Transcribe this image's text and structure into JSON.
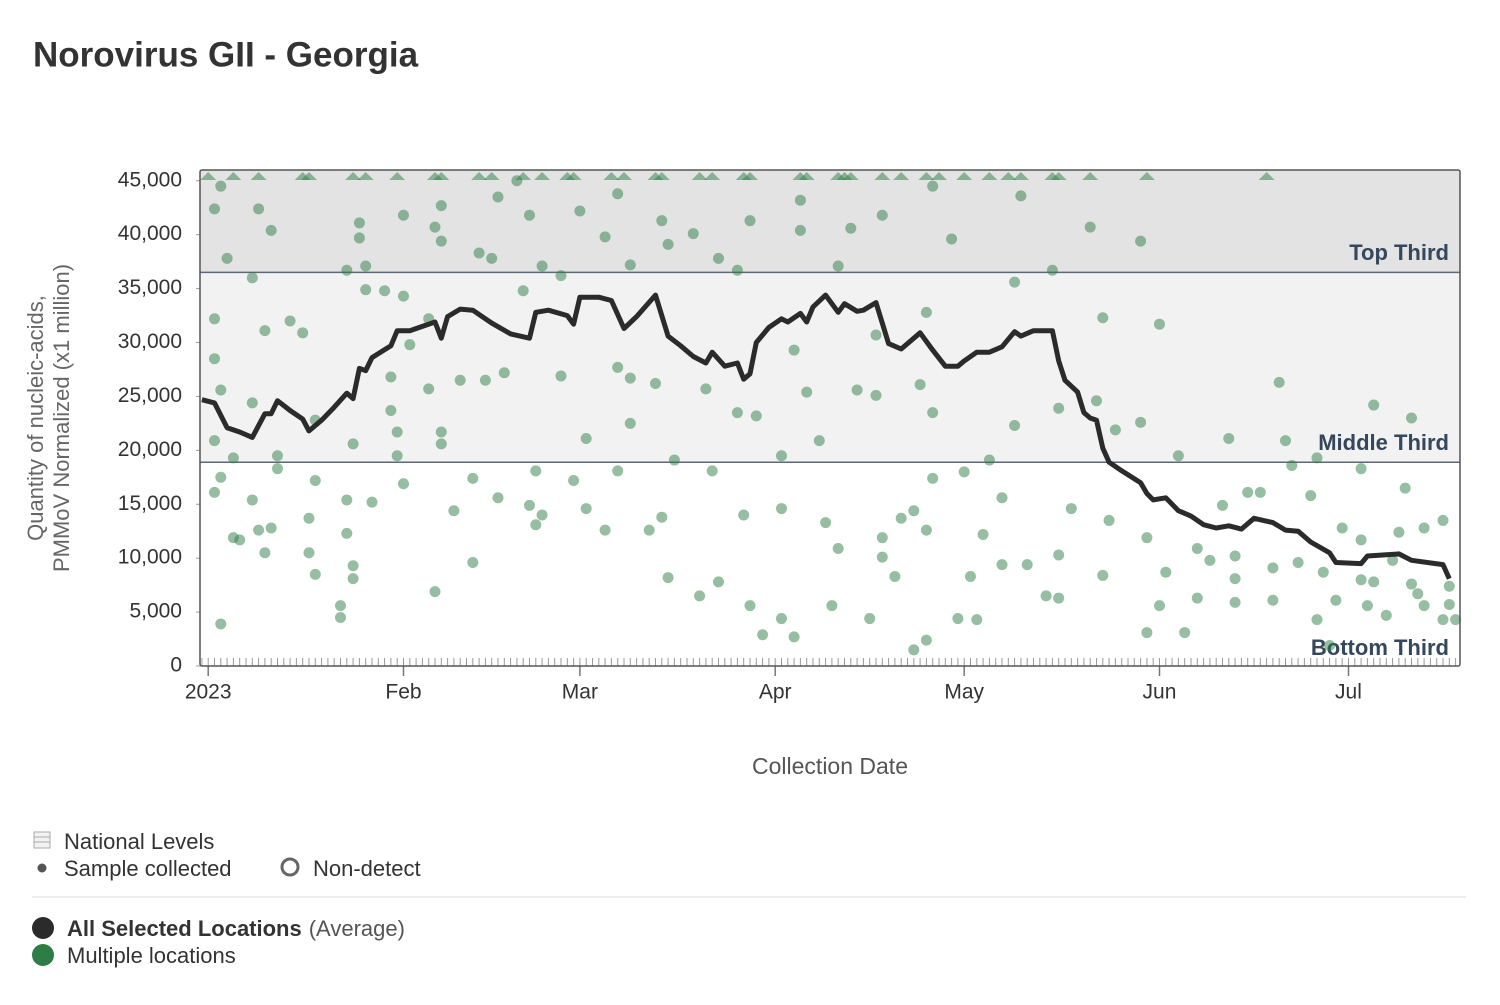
{
  "chart_data": {
    "type": "line-scatter",
    "title": "Norovirus GII - Georgia",
    "ylabel": [
      "Quantity of nucleic-acids,",
      "PMMoV Normalized (x1 million)"
    ],
    "xlabel": "Collection Date",
    "xlim": [
      -0.3,
      199.7
    ],
    "xticks": [
      {
        "value": 1,
        "label": "2023"
      },
      {
        "value": 32,
        "label": "Feb"
      },
      {
        "value": 60,
        "label": "Mar"
      },
      {
        "value": 91,
        "label": "Apr"
      },
      {
        "value": 121,
        "label": "May"
      },
      {
        "value": 152,
        "label": "Jun"
      },
      {
        "value": 182,
        "label": "Jul"
      }
    ],
    "ylim": [
      0,
      46000
    ],
    "yticks": [
      0,
      {
        "value": 5000,
        "label": "5,000"
      },
      {
        "value": 10000,
        "label": "10,000"
      },
      {
        "value": 15000,
        "label": "15,000"
      },
      {
        "value": 20000,
        "label": "20,000"
      },
      {
        "value": 25000,
        "label": "25,000"
      },
      {
        "value": 30000,
        "label": "30,000"
      },
      {
        "value": 35000,
        "label": "35,000"
      },
      {
        "value": 40000,
        "label": "40,000"
      },
      {
        "value": 45000,
        "label": "45,000"
      }
    ],
    "band_thresholds": [
      18900,
      36500
    ],
    "band_labels": [
      "Bottom Third",
      "Middle Third",
      "Top Third"
    ],
    "band_colors": [
      "#ffffff",
      "#f2f2f2",
      "#e3e3e3"
    ],
    "legend_levels": [
      "National Levels",
      "Sample collected",
      "Non-detect"
    ],
    "series": [
      {
        "name": "All Selected Locations",
        "note": "(Average)",
        "color": "#2b2b2b",
        "x": [
          0,
          2,
          4,
          6,
          8,
          10,
          11,
          12,
          14,
          16,
          17,
          19,
          21,
          23,
          24,
          25,
          26,
          27,
          30,
          31,
          33,
          37,
          38,
          39,
          41,
          43,
          46,
          49,
          52,
          53,
          55,
          58,
          59,
          60,
          63,
          65,
          67,
          69,
          72,
          74,
          76,
          78,
          80,
          81,
          83,
          85,
          86,
          87,
          88,
          90,
          92,
          93,
          95,
          96,
          97,
          99,
          101,
          102,
          104,
          105,
          107,
          109,
          111,
          114,
          116,
          118,
          120,
          121,
          123,
          125,
          127,
          129,
          130,
          132,
          135,
          136,
          137,
          139,
          140,
          141,
          142,
          143,
          144,
          146,
          149,
          150,
          151,
          153,
          155,
          157,
          159,
          161,
          163,
          165,
          167,
          170,
          172,
          174,
          176,
          179,
          180,
          184,
          185,
          190,
          192,
          197,
          198
        ],
        "values": [
          24700,
          24400,
          22100,
          21700,
          21200,
          23400,
          23400,
          24600,
          23700,
          22900,
          21800,
          22800,
          24000,
          25300,
          24800,
          27600,
          27400,
          28600,
          29700,
          31100,
          31100,
          31900,
          30400,
          32400,
          33100,
          33000,
          31800,
          30800,
          30400,
          32800,
          33000,
          32500,
          31700,
          34200,
          34200,
          33900,
          31300,
          32400,
          34400,
          30600,
          29700,
          28700,
          28100,
          29100,
          27800,
          28100,
          26600,
          27100,
          30000,
          31400,
          32200,
          31900,
          32700,
          31900,
          33300,
          34400,
          32800,
          33600,
          32900,
          33000,
          33700,
          29900,
          29400,
          30900,
          29300,
          27800,
          27800,
          28300,
          29100,
          29100,
          29600,
          31000,
          30600,
          31100,
          31100,
          28300,
          26500,
          25400,
          23500,
          23000,
          22800,
          20200,
          18900,
          18100,
          17000,
          16000,
          15400,
          15600,
          14400,
          13900,
          13100,
          12800,
          13000,
          12700,
          13700,
          13300,
          12600,
          12500,
          11500,
          10500,
          9600,
          9500,
          10200,
          10400,
          9800,
          9400,
          8100
        ]
      },
      {
        "name": "Multiple locations",
        "color": "#2e7d46",
        "x": [
          2,
          2,
          2,
          3,
          4,
          3,
          2,
          2,
          3,
          3,
          5,
          6,
          5,
          8,
          9,
          11,
          10,
          8,
          8,
          9,
          10,
          11,
          12,
          12,
          14,
          16,
          18,
          18,
          17,
          18,
          17,
          22,
          22,
          23,
          23,
          24,
          24,
          24,
          23,
          25,
          25,
          26,
          26,
          27,
          29,
          30,
          30,
          31,
          31,
          32,
          32,
          32,
          33,
          36,
          36,
          37,
          38,
          38,
          38,
          38,
          37,
          40,
          41,
          43,
          44,
          46,
          47,
          47,
          43,
          45,
          48,
          50,
          52,
          51,
          54,
          53,
          52,
          54,
          53,
          57,
          57,
          59,
          60,
          61,
          61,
          64,
          64,
          66,
          66,
          66,
          68,
          68,
          68,
          71,
          72,
          73,
          74,
          73,
          74,
          75,
          78,
          79,
          82,
          81,
          80,
          82,
          85,
          85,
          87,
          87,
          89,
          86,
          88,
          92,
          92,
          92,
          94,
          94,
          95,
          95,
          96,
          98,
          99,
          100,
          101,
          101,
          103,
          104,
          106,
          108,
          108,
          110,
          108,
          107,
          111,
          107,
          113,
          113,
          115,
          115,
          114,
          115,
          116,
          116,
          116,
          119,
          120,
          122,
          121,
          123,
          124,
          125,
          127,
          127,
          129,
          129,
          130,
          131,
          134,
          136,
          135,
          136,
          136,
          138,
          141,
          142,
          143,
          143,
          144,
          145,
          149,
          149,
          150,
          150,
          152,
          152,
          153,
          155,
          156,
          158,
          158,
          160,
          162,
          163,
          164,
          164,
          164,
          166,
          168,
          170,
          170,
          171,
          172,
          173,
          174,
          176,
          177,
          177,
          178,
          179,
          180,
          181,
          184,
          184,
          184,
          185,
          186,
          186,
          188,
          189,
          190,
          191,
          192,
          192,
          193,
          194,
          194,
          197,
          197,
          198,
          198,
          199
        ],
        "values": [
          42400,
          32200,
          28500,
          44500,
          37800,
          25600,
          20900,
          16100,
          17500,
          3900,
          11900,
          11700,
          19300,
          36000,
          42400,
          40400,
          31100,
          24400,
          15400,
          12600,
          10500,
          12800,
          19500,
          18300,
          32000,
          30900,
          22800,
          17200,
          13700,
          8500,
          10500,
          5600,
          4500,
          15400,
          12300,
          9300,
          8100,
          20600,
          36700,
          39700,
          41100,
          37100,
          34900,
          15200,
          34800,
          23700,
          26800,
          19500,
          21700,
          34300,
          41800,
          16900,
          29800,
          25700,
          32200,
          40700,
          42700,
          39400,
          21700,
          20600,
          6900,
          14400,
          26500,
          17400,
          38300,
          37800,
          43500,
          15600,
          9600,
          26500,
          27200,
          45000,
          41800,
          34800,
          37100,
          18100,
          14900,
          14000,
          13100,
          26900,
          36200,
          17200,
          42200,
          21100,
          14600,
          12600,
          39800,
          43800,
          27700,
          18100,
          26700,
          22500,
          37200,
          12600,
          26200,
          41300,
          39100,
          13800,
          8200,
          19100,
          40100,
          6500,
          7800,
          18100,
          25700,
          37800,
          23500,
          36700,
          41300,
          5600,
          2900,
          14000,
          23200,
          19500,
          14600,
          4400,
          2700,
          29300,
          43200,
          40400,
          25400,
          20900,
          13300,
          5600,
          10900,
          37100,
          40600,
          25600,
          4400,
          10100,
          11900,
          8300,
          41800,
          30700,
          13700,
          25100,
          14400,
          1500,
          2400,
          12600,
          26100,
          32800,
          44500,
          23500,
          17400,
          39600,
          4400,
          8300,
          18000,
          4300,
          12200,
          19100,
          9400,
          15600,
          22300,
          35600,
          43600,
          9400,
          6500,
          6300,
          36700,
          23900,
          10300,
          14600,
          40700,
          24600,
          8400,
          32300,
          13500,
          21900,
          39400,
          22600,
          11900,
          3100,
          31700,
          5600,
          8700,
          19500,
          3100,
          6300,
          10900,
          9800,
          14900,
          21100,
          5900,
          8100,
          10200,
          16100,
          16100,
          6100,
          9100,
          26300,
          20900,
          18600,
          9600,
          15800,
          19300,
          4300,
          8700,
          1900,
          6100,
          12800,
          18300,
          11700,
          8000,
          5600,
          24200,
          7800,
          4700,
          9800,
          12400,
          16500,
          7600,
          23000,
          6700,
          12800,
          5600,
          13500,
          4300,
          7400,
          5700,
          4300
        ],
        "above_range_x": [
          1,
          5,
          9,
          16,
          17,
          24,
          26,
          31,
          37,
          38,
          44,
          46,
          51,
          54,
          58,
          59,
          65,
          67,
          72,
          73,
          79,
          81,
          86,
          87,
          95,
          96,
          101,
          102,
          103,
          108,
          111,
          115,
          117,
          121,
          125,
          128,
          130,
          135,
          136,
          141,
          150,
          169
        ]
      }
    ]
  }
}
